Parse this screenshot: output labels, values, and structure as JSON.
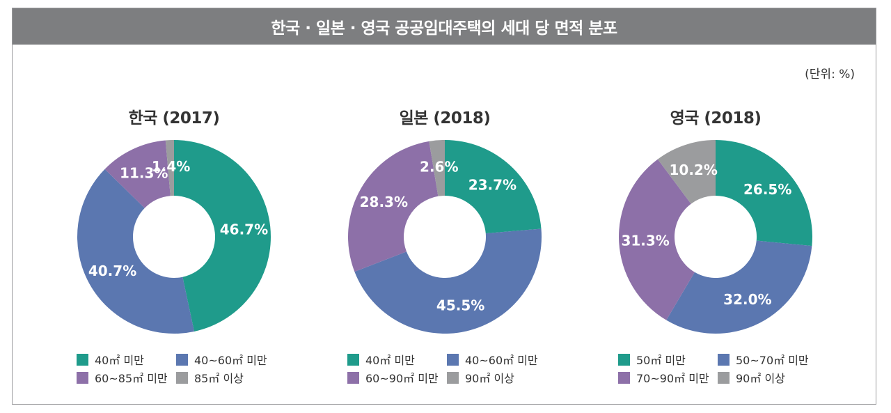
{
  "title": "한국 · 일본 · 영국 공공임대주택의 세대 당 면적 분포",
  "unit": "(단위: %)",
  "colors": {
    "teal": "#1f9b8b",
    "blue": "#5b77b0",
    "purple": "#8d70a8",
    "gray": "#9b9c9e"
  },
  "chart_data": [
    {
      "type": "pie",
      "title": "한국 (2017)",
      "categories": [
        "40㎡ 미만",
        "40~60㎡ 미만",
        "60~85㎡ 미만",
        "85㎡ 이상"
      ],
      "values": [
        46.7,
        40.7,
        11.3,
        1.4
      ],
      "labels": [
        "46.7%",
        "40.7%",
        "11.3%",
        "1.4%"
      ],
      "colors": [
        "#1f9b8b",
        "#5b77b0",
        "#8d70a8",
        "#9b9c9e"
      ]
    },
    {
      "type": "pie",
      "title": "일본 (2018)",
      "categories": [
        "40㎡ 미만",
        "40~60㎡ 미만",
        "60~90㎡ 미만",
        "90㎡ 이상"
      ],
      "values": [
        23.7,
        45.5,
        28.3,
        2.6
      ],
      "labels": [
        "23.7%",
        "45.5%",
        "28.3%",
        "2.6%"
      ],
      "colors": [
        "#1f9b8b",
        "#5b77b0",
        "#8d70a8",
        "#9b9c9e"
      ]
    },
    {
      "type": "pie",
      "title": "영국 (2018)",
      "categories": [
        "50㎡ 미만",
        "50~70㎡ 미만",
        "70~90㎡ 미만",
        "90㎡ 이상"
      ],
      "values": [
        26.5,
        32.0,
        31.3,
        10.2
      ],
      "labels": [
        "26.5%",
        "32.0%",
        "31.3%",
        "10.2%"
      ],
      "colors": [
        "#1f9b8b",
        "#5b77b0",
        "#8d70a8",
        "#9b9c9e"
      ]
    }
  ]
}
